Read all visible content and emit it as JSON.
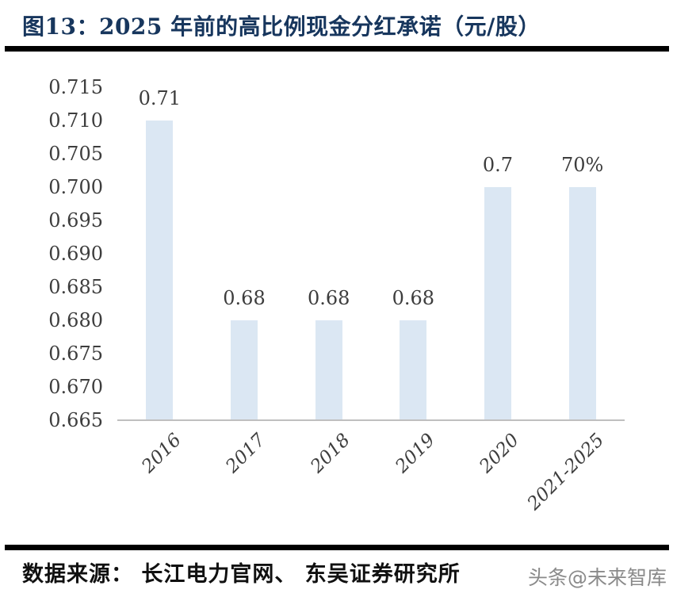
{
  "header": {
    "title": "图13：2025 年前的高比例现金分红承诺（元/股）"
  },
  "chart_data": {
    "type": "bar",
    "title": "2025 年前的高比例现金分红承诺（元/股）",
    "categories": [
      "2016",
      "2017",
      "2018",
      "2019",
      "2020",
      "2021-2025"
    ],
    "values": [
      0.71,
      0.68,
      0.68,
      0.68,
      0.7,
      0.7
    ],
    "bar_labels": [
      "0.71",
      "0.68",
      "0.68",
      "0.68",
      "0.7",
      "70%"
    ],
    "xlabel": "",
    "ylabel": "",
    "ylim": [
      0.665,
      0.715
    ],
    "ytick_step": 0.005,
    "yticks": [
      "0.715",
      "0.710",
      "0.705",
      "0.700",
      "0.695",
      "0.690",
      "0.685",
      "0.680",
      "0.675",
      "0.670",
      "0.665"
    ],
    "grid": false,
    "legend": false,
    "bar_color": "#dbe7f3",
    "axis_line_color": "#bfbfbf",
    "tick_label_color": "#3d3d3d"
  },
  "footer": {
    "source": "数据来源： 长江电力官网、 东吴证券研究所",
    "watermark": "头条@未来智库"
  },
  "colors": {
    "title_navy": "#17365d",
    "separator_black": "#000000"
  }
}
